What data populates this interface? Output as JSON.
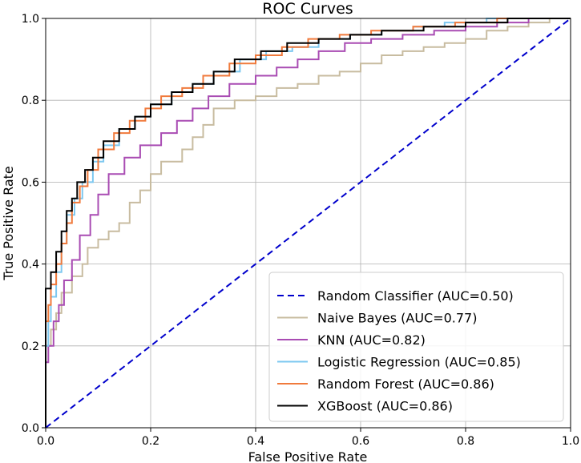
{
  "chart_data": {
    "type": "line",
    "title": "ROC Curves",
    "xlabel": "False Positive Rate",
    "ylabel": "True Positive Rate",
    "xlim": [
      0.0,
      1.0
    ],
    "ylim": [
      0.0,
      1.0
    ],
    "xticks": [
      "0.0",
      "0.2",
      "0.4",
      "0.6",
      "0.8",
      "1.0"
    ],
    "yticks": [
      "0.0",
      "0.2",
      "0.4",
      "0.6",
      "0.8",
      "1.0"
    ],
    "grid": true,
    "legend_position": "lower-right",
    "series": [
      {
        "name": "Random Classifier (AUC=0.50)",
        "color": "#0000cc",
        "dashed": true,
        "points": [
          [
            0,
            0
          ],
          [
            1,
            1
          ]
        ]
      },
      {
        "name": "Naive Bayes (AUC=0.77)",
        "color": "#c8bca0",
        "dashed": false,
        "points": [
          [
            0,
            0
          ],
          [
            0,
            0.14
          ],
          [
            0.01,
            0.2
          ],
          [
            0.02,
            0.24
          ],
          [
            0.03,
            0.28
          ],
          [
            0.05,
            0.33
          ],
          [
            0.07,
            0.37
          ],
          [
            0.08,
            0.4
          ],
          [
            0.1,
            0.44
          ],
          [
            0.12,
            0.46
          ],
          [
            0.14,
            0.48
          ],
          [
            0.16,
            0.5
          ],
          [
            0.18,
            0.55
          ],
          [
            0.2,
            0.58
          ],
          [
            0.22,
            0.62
          ],
          [
            0.26,
            0.65
          ],
          [
            0.28,
            0.68
          ],
          [
            0.3,
            0.71
          ],
          [
            0.32,
            0.74
          ],
          [
            0.36,
            0.78
          ],
          [
            0.4,
            0.8
          ],
          [
            0.44,
            0.81
          ],
          [
            0.48,
            0.83
          ],
          [
            0.52,
            0.84
          ],
          [
            0.56,
            0.86
          ],
          [
            0.6,
            0.87
          ],
          [
            0.64,
            0.89
          ],
          [
            0.68,
            0.91
          ],
          [
            0.72,
            0.92
          ],
          [
            0.76,
            0.93
          ],
          [
            0.8,
            0.94
          ],
          [
            0.84,
            0.95
          ],
          [
            0.88,
            0.97
          ],
          [
            0.92,
            0.98
          ],
          [
            0.96,
            0.99
          ],
          [
            1.0,
            1.0
          ]
        ]
      },
      {
        "name": "KNN (AUC=0.82)",
        "color": "#a94cb3",
        "dashed": false,
        "points": [
          [
            0,
            0
          ],
          [
            0,
            0.1
          ],
          [
            0.005,
            0.16
          ],
          [
            0.015,
            0.2
          ],
          [
            0.025,
            0.26
          ],
          [
            0.035,
            0.3
          ],
          [
            0.05,
            0.36
          ],
          [
            0.065,
            0.41
          ],
          [
            0.085,
            0.47
          ],
          [
            0.1,
            0.52
          ],
          [
            0.12,
            0.57
          ],
          [
            0.15,
            0.62
          ],
          [
            0.18,
            0.66
          ],
          [
            0.22,
            0.69
          ],
          [
            0.25,
            0.72
          ],
          [
            0.28,
            0.75
          ],
          [
            0.31,
            0.78
          ],
          [
            0.35,
            0.81
          ],
          [
            0.4,
            0.84
          ],
          [
            0.44,
            0.86
          ],
          [
            0.48,
            0.88
          ],
          [
            0.52,
            0.9
          ],
          [
            0.57,
            0.92
          ],
          [
            0.62,
            0.94
          ],
          [
            0.68,
            0.95
          ],
          [
            0.74,
            0.96
          ],
          [
            0.8,
            0.97
          ],
          [
            0.86,
            0.98
          ],
          [
            0.92,
            0.99
          ],
          [
            1.0,
            1.0
          ]
        ]
      },
      {
        "name": "Logistic Regression (AUC=0.85)",
        "color": "#7ec8f0",
        "dashed": false,
        "points": [
          [
            0,
            0
          ],
          [
            0,
            0.16
          ],
          [
            0.005,
            0.2
          ],
          [
            0.01,
            0.26
          ],
          [
            0.02,
            0.32
          ],
          [
            0.03,
            0.38
          ],
          [
            0.04,
            0.45
          ],
          [
            0.055,
            0.52
          ],
          [
            0.07,
            0.56
          ],
          [
            0.09,
            0.6
          ],
          [
            0.11,
            0.65
          ],
          [
            0.14,
            0.69
          ],
          [
            0.17,
            0.73
          ],
          [
            0.2,
            0.76
          ],
          [
            0.24,
            0.79
          ],
          [
            0.28,
            0.82
          ],
          [
            0.32,
            0.84
          ],
          [
            0.37,
            0.87
          ],
          [
            0.42,
            0.9
          ],
          [
            0.47,
            0.92
          ],
          [
            0.52,
            0.93
          ],
          [
            0.58,
            0.95
          ],
          [
            0.64,
            0.96
          ],
          [
            0.7,
            0.97
          ],
          [
            0.76,
            0.98
          ],
          [
            0.84,
            0.99
          ],
          [
            1.0,
            1.0
          ]
        ]
      },
      {
        "name": "Random Forest (AUC=0.86)",
        "color": "#f07a3c",
        "dashed": false,
        "points": [
          [
            0,
            0
          ],
          [
            0,
            0.2
          ],
          [
            0.005,
            0.26
          ],
          [
            0.01,
            0.3
          ],
          [
            0.02,
            0.35
          ],
          [
            0.03,
            0.4
          ],
          [
            0.04,
            0.45
          ],
          [
            0.05,
            0.5
          ],
          [
            0.065,
            0.55
          ],
          [
            0.08,
            0.59
          ],
          [
            0.1,
            0.63
          ],
          [
            0.13,
            0.68
          ],
          [
            0.16,
            0.72
          ],
          [
            0.19,
            0.75
          ],
          [
            0.22,
            0.78
          ],
          [
            0.26,
            0.81
          ],
          [
            0.3,
            0.83
          ],
          [
            0.35,
            0.86
          ],
          [
            0.4,
            0.89
          ],
          [
            0.45,
            0.91
          ],
          [
            0.5,
            0.93
          ],
          [
            0.56,
            0.95
          ],
          [
            0.62,
            0.96
          ],
          [
            0.7,
            0.97
          ],
          [
            0.78,
            0.98
          ],
          [
            0.86,
            0.99
          ],
          [
            1.0,
            1.0
          ]
        ]
      },
      {
        "name": "XGBoost (AUC=0.86)",
        "color": "#000000",
        "dashed": false,
        "points": [
          [
            0,
            0
          ],
          [
            0,
            0.32
          ],
          [
            0.01,
            0.34
          ],
          [
            0.02,
            0.38
          ],
          [
            0.03,
            0.43
          ],
          [
            0.04,
            0.48
          ],
          [
            0.05,
            0.53
          ],
          [
            0.06,
            0.56
          ],
          [
            0.075,
            0.6
          ],
          [
            0.09,
            0.63
          ],
          [
            0.11,
            0.66
          ],
          [
            0.14,
            0.7
          ],
          [
            0.17,
            0.73
          ],
          [
            0.2,
            0.76
          ],
          [
            0.24,
            0.79
          ],
          [
            0.28,
            0.82
          ],
          [
            0.32,
            0.84
          ],
          [
            0.36,
            0.87
          ],
          [
            0.41,
            0.9
          ],
          [
            0.46,
            0.92
          ],
          [
            0.52,
            0.94
          ],
          [
            0.58,
            0.95
          ],
          [
            0.64,
            0.96
          ],
          [
            0.72,
            0.97
          ],
          [
            0.8,
            0.98
          ],
          [
            0.88,
            0.99
          ],
          [
            1.0,
            1.0
          ]
        ]
      }
    ]
  }
}
